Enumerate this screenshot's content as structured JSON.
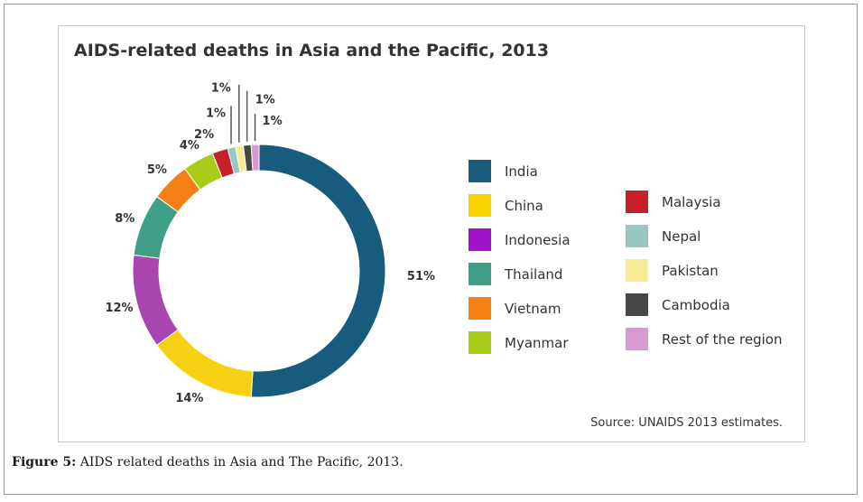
{
  "caption": {
    "label": "Figure 5:",
    "text": " AIDS related deaths in Asia and The Pacific, 2013."
  },
  "chart_data": {
    "type": "pie",
    "style": "donut",
    "title": "AIDS-related deaths in Asia and the Pacific, 2013",
    "source": "Source: UNAIDS 2013 estimates.",
    "unit": "%",
    "legend_position": "right",
    "slices": [
      {
        "name": "India",
        "value": 51,
        "label": "51%",
        "color": "#175c7c"
      },
      {
        "name": "China",
        "value": 14,
        "label": "14%",
        "color": "#f5d111"
      },
      {
        "name": "Indonesia",
        "value": 12,
        "label": "12%",
        "color": "#a945b1"
      },
      {
        "name": "Thailand",
        "value": 8,
        "label": "8%",
        "color": "#3f9e86"
      },
      {
        "name": "Vietnam",
        "value": 5,
        "label": "5%",
        "color": "#f58016"
      },
      {
        "name": "Myanmar",
        "value": 4,
        "label": "4%",
        "color": "#a9cc18"
      },
      {
        "name": "Malaysia",
        "value": 2,
        "label": "2%",
        "color": "#c82029"
      },
      {
        "name": "Nepal",
        "value": 1,
        "label": "1%",
        "color": "#98c7c1"
      },
      {
        "name": "Pakistan",
        "value": 1,
        "label": "1%",
        "color": "#f9ea94"
      },
      {
        "name": "Cambodia",
        "value": 1,
        "label": "1%",
        "color": "#474747"
      },
      {
        "name": "Rest of the region",
        "value": 1,
        "label": "1%",
        "color": "#d89ad4"
      }
    ],
    "legend_colors": {
      "India": "#175c7c",
      "China": "#f9d200",
      "Indonesia": "#a112c9",
      "Thailand": "#3f9e86",
      "Vietnam": "#f58016",
      "Myanmar": "#a9cc18",
      "Malaysia": "#c82029",
      "Nepal": "#98c7c1",
      "Pakistan": "#f9ea94",
      "Cambodia": "#474747",
      "Rest of the region": "#d89ad4"
    }
  }
}
